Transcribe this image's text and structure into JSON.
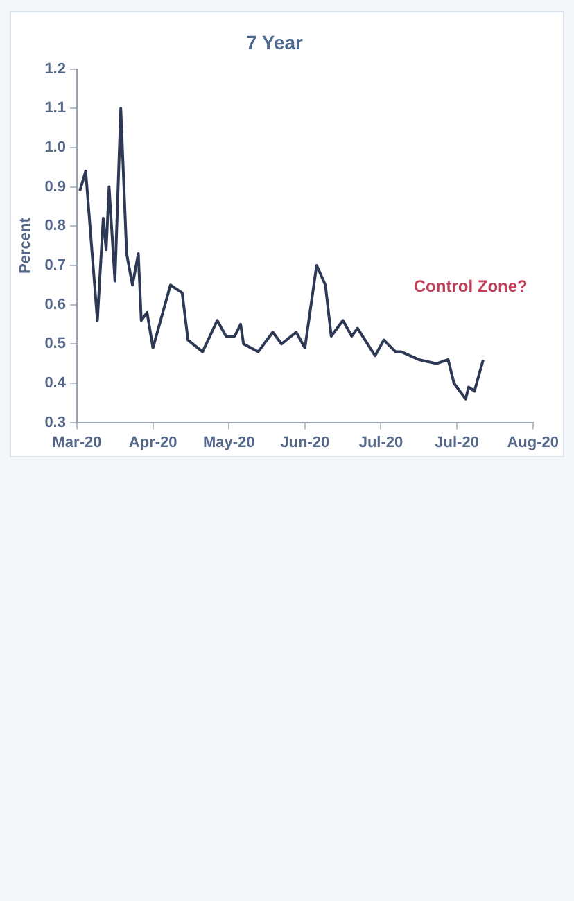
{
  "chart_data": {
    "type": "line",
    "title": "7 Year",
    "ylabel": "Percent",
    "x": [
      "2020-03-22",
      "2020-03-24",
      "2020-03-28",
      "2020-03-30",
      "2020-03-31",
      "2020-04-01",
      "2020-04-03",
      "2020-04-05",
      "2020-04-07",
      "2020-04-09",
      "2020-04-11",
      "2020-04-12",
      "2020-04-14",
      "2020-04-16",
      "2020-04-22",
      "2020-04-26",
      "2020-04-28",
      "2020-05-03",
      "2020-05-08",
      "2020-05-11",
      "2020-05-14",
      "2020-05-16",
      "2020-05-17",
      "2020-05-22",
      "2020-05-27",
      "2020-05-30",
      "2020-06-04",
      "2020-06-07",
      "2020-06-11",
      "2020-06-14",
      "2020-06-16",
      "2020-06-20",
      "2020-06-23",
      "2020-06-25",
      "2020-07-01",
      "2020-07-04",
      "2020-07-08",
      "2020-07-10",
      "2020-07-16",
      "2020-07-22",
      "2020-07-26",
      "2020-07-28",
      "2020-08-01",
      "2020-08-02",
      "2020-08-04",
      "2020-08-07"
    ],
    "series": [
      {
        "color": "#2e3a55",
        "values": [
          0.89,
          0.94,
          0.56,
          0.82,
          0.74,
          0.9,
          0.66,
          1.1,
          0.73,
          0.65,
          0.73,
          0.56,
          0.58,
          0.49,
          0.65,
          0.63,
          0.51,
          0.48,
          0.56,
          0.52,
          0.52,
          0.55,
          0.5,
          0.48,
          0.53,
          0.5,
          0.53,
          0.49,
          0.7,
          0.65,
          0.52,
          0.56,
          0.52,
          0.54,
          0.47,
          0.51,
          0.48,
          0.48,
          0.46,
          0.45,
          0.46,
          0.4,
          0.36,
          0.39,
          0.38,
          0.46
        ]
      }
    ],
    "xlim": [
      "2020-03-21",
      "2020-08-24"
    ],
    "xticks": [
      {
        "value": "2020-03-21",
        "label": "Mar-20"
      },
      {
        "value": "2020-04-16",
        "label": "Apr-20"
      },
      {
        "value": "2020-05-12",
        "label": "May-20"
      },
      {
        "value": "2020-06-07",
        "label": "Jun-20"
      },
      {
        "value": "2020-07-03",
        "label": "Jul-20"
      },
      {
        "value": "2020-07-29",
        "label": "Jul-20"
      },
      {
        "value": "2020-08-24",
        "label": "Aug-20"
      }
    ],
    "ylim": [
      0.3,
      1.2
    ],
    "yticks": [
      {
        "value": 0.3,
        "label": "0.3"
      },
      {
        "value": 0.4,
        "label": "0.4"
      },
      {
        "value": 0.5,
        "label": "0.5"
      },
      {
        "value": 0.6,
        "label": "0.6"
      },
      {
        "value": 0.7,
        "label": "0.7"
      },
      {
        "value": 0.8,
        "label": "0.8"
      },
      {
        "value": 0.9,
        "label": "0.9"
      },
      {
        "value": 1.0,
        "label": "1.0"
      },
      {
        "value": 1.1,
        "label": "1.1"
      },
      {
        "value": 1.2,
        "label": "1.2"
      }
    ],
    "annotations": [
      "Control Zone?"
    ],
    "grid": false,
    "legend": false,
    "marker": "none",
    "line_style": "solid"
  }
}
